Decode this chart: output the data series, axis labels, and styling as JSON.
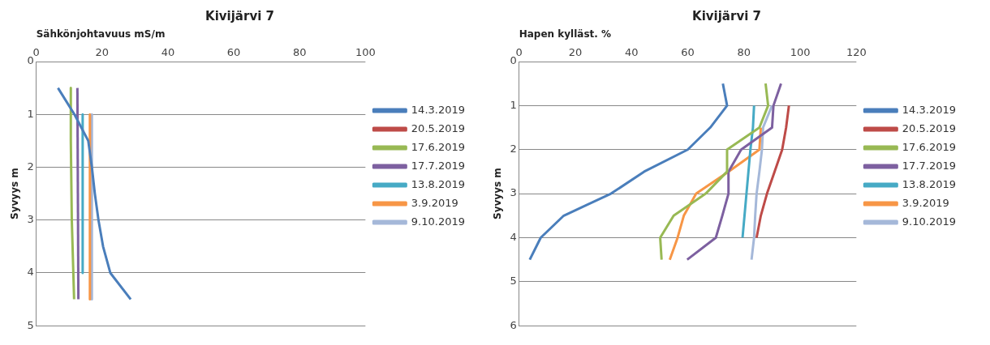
{
  "chart_data": [
    {
      "type": "line",
      "title": "Kivijärvi 7",
      "xlabel": "Sähkönjohtavuus mS/m",
      "ylabel": "Syvyys m",
      "xlim": [
        0,
        100
      ],
      "xticks": [
        0,
        20,
        40,
        60,
        80,
        100
      ],
      "ylim": [
        5,
        0
      ],
      "yticks": [
        0,
        1,
        2,
        3,
        4,
        5
      ],
      "grid": "y",
      "legend": "right",
      "series": [
        {
          "name": "14.3.2019",
          "color": "#4a7ebb",
          "x": [
            6.6,
            11.6,
            15.8,
            16.9,
            17.8,
            18.9,
            20.3,
            22.5,
            28.7
          ],
          "values": [
            0.5,
            1,
            1.5,
            2,
            2.5,
            3,
            3.5,
            4,
            4.5
          ]
        },
        {
          "name": "20.5.2019",
          "color": "#be4b48"
        },
        {
          "name": "17.6.2019",
          "color": "#98b954",
          "x": [
            10.5,
            10.5,
            10.8,
            11.5
          ],
          "values": [
            0.5,
            1.5,
            3,
            4.5
          ]
        },
        {
          "name": "17.7.2019",
          "color": "#7d60a0",
          "x": [
            12.5,
            12.8
          ],
          "values": [
            0.5,
            4.5
          ]
        },
        {
          "name": "13.8.2019",
          "color": "#46aac5",
          "x": [
            14.1,
            14.1
          ],
          "values": [
            1,
            4
          ]
        },
        {
          "name": "3.9.2019",
          "color": "#f79646",
          "x": [
            16.3,
            16.3
          ],
          "values": [
            1,
            4.5
          ]
        },
        {
          "name": "9.10.2019",
          "color": "#a5b8d9",
          "x": [
            16.9,
            16.9
          ],
          "values": [
            1,
            4.5
          ]
        }
      ]
    },
    {
      "type": "line",
      "title": "Kivijärvi 7",
      "xlabel": "Hapen kylläst. %",
      "ylabel": "Syvyys m",
      "xlim": [
        0,
        120
      ],
      "xticks": [
        0,
        20,
        40,
        60,
        80,
        100,
        120
      ],
      "ylim": [
        6,
        0
      ],
      "yticks": [
        0,
        1,
        2,
        3,
        4,
        5,
        6
      ],
      "grid": "y",
      "legend": "right",
      "series": [
        {
          "name": "14.3.2019",
          "color": "#4a7ebb",
          "x": [
            72.5,
            74,
            68,
            60,
            44.5,
            32.7,
            15.9,
            7.7,
            3.8
          ],
          "values": [
            0.5,
            1,
            1.5,
            2,
            2.5,
            3,
            3.5,
            4,
            4.5
          ]
        },
        {
          "name": "20.5.2019",
          "color": "#be4b48",
          "x": [
            96,
            95,
            93.6,
            90.9,
            88.2,
            86,
            84.5
          ],
          "values": [
            1,
            1.5,
            2,
            2.5,
            3,
            3.5,
            4
          ]
        },
        {
          "name": "17.6.2019",
          "color": "#98b954",
          "x": [
            87.7,
            88.6,
            85.5,
            74,
            74,
            66.4,
            55,
            50.2,
            50.7
          ],
          "values": [
            0.5,
            1,
            1.5,
            2,
            2.5,
            3,
            3.5,
            4,
            4.5
          ]
        },
        {
          "name": "17.7.2019",
          "color": "#7d60a0",
          "x": [
            93.2,
            90.5,
            90,
            79,
            74.5,
            74.5,
            72.3,
            70,
            59.8
          ],
          "values": [
            0.5,
            1,
            1.5,
            2,
            2.5,
            3,
            3.5,
            4,
            4.5
          ]
        },
        {
          "name": "13.8.2019",
          "color": "#46aac5",
          "x": [
            83.6,
            83.2,
            82.3,
            81.6,
            80.9,
            80.2,
            79.5
          ],
          "values": [
            1,
            1.5,
            2,
            2.5,
            3,
            3.5,
            4
          ]
        },
        {
          "name": "3.9.2019",
          "color": "#f79646",
          "x": [
            86,
            85.5,
            74.5,
            63,
            58.6,
            56.4,
            53.6
          ],
          "values": [
            1.5,
            2,
            2.5,
            3,
            3.5,
            4,
            4.5
          ]
        },
        {
          "name": "9.10.2019",
          "color": "#a5b8d9",
          "x": [
            90,
            86.8,
            86.4,
            85.5,
            84.5,
            84,
            83.6,
            82.7
          ],
          "values": [
            1,
            1.5,
            2,
            2.5,
            3,
            3.5,
            4,
            4.5
          ]
        }
      ]
    }
  ]
}
